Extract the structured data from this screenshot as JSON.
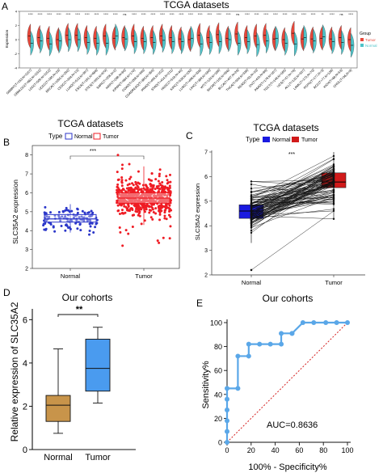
{
  "panel_letters": [
    "A",
    "B",
    "C",
    "D",
    "E"
  ],
  "chart_data": [
    {
      "panel": "A",
      "type": "violin",
      "title": "TCGA datasets",
      "ylabel": "Expression",
      "ylim": [
        -4,
        4
      ],
      "yticks": [
        "4",
        "2",
        "0",
        "-2",
        "-4"
      ],
      "legend_title": "Group",
      "legend_position": "right",
      "series": [
        {
          "name": "Tumor",
          "color": "#e8473a"
        },
        {
          "name": "Normal",
          "color": "#4ec3c9"
        }
      ],
      "categories": [
        "GBMNT(T=153,N=1157)",
        "GBMLGG(T=662,N=1152)",
        "LGG(T=509,N=1152)",
        "UCEC(T=180,N=23)",
        "BRCA(T=1092,N=292)",
        "CESC(T=304,N=13)",
        "LUAD(T=513,N=397)",
        "ESCA(T=181,N=668)",
        "STES(T=593,N=879)",
        "SARC(T=258,N=2)",
        "KIRP(T=288,N=60)",
        "KIPAN(T=884,N=170)",
        "COAD(T=288,N=349)",
        "COADREAD(T=380,N=359)",
        "PRAD(T=495,N=152)",
        "STAD(T=414,N=211)",
        "HNSC(T=518,N=44)",
        "KIRC(T=530,N=100)",
        "LUSC(T=498,N=338)",
        "LIHC(T=369,N=160)",
        "WT(T=120,N=168)",
        "SKCM(T=102,N=556)",
        "BLCA(T=407,N=28)",
        "THCA(T=504,N=338)",
        "READ(T=92,N=10)",
        "OV(T=419,N=88)",
        "PAAD(T=178,N=167)",
        "TGCT(T=148,N=165)",
        "UCS(T=57,N=78)",
        "ALL(T=132,N=337)",
        "LAML(T=173,N=70)",
        "PCPG(T=177,N=3)",
        "ACC(T=77,N=128)",
        "KICH(T=66,N=53)",
        "CHOL(T=36,N=9)"
      ],
      "significance": [
        "****",
        "****",
        "****",
        "****",
        "****",
        "****",
        "****",
        "****",
        "****",
        "****",
        "ns",
        "****",
        "****",
        "****",
        "****",
        "****",
        "****",
        "****",
        "****",
        "****",
        "****",
        "****",
        "ns",
        "****",
        "****",
        "****",
        "****",
        "****",
        "****",
        "****",
        "****",
        "**",
        "****",
        "ns",
        "****"
      ],
      "tumor_median": [
        0.5,
        0.3,
        0.2,
        0.0,
        0.6,
        0.6,
        0.3,
        0.2,
        0.5,
        0.2,
        0.3,
        0.5,
        0.2,
        0.3,
        0.5,
        0.3,
        0.1,
        0.0,
        0.6,
        0.3,
        0.7,
        0.2,
        0.8,
        0.3,
        0.5,
        0.6,
        0.1,
        0.0,
        0.9,
        0.1,
        0.1,
        0.2,
        0.1,
        0.3,
        0.0
      ],
      "normal_median": [
        -0.5,
        -0.2,
        -0.6,
        -0.2,
        0.0,
        0.0,
        -0.4,
        -0.5,
        -0.5,
        0.5,
        0.1,
        -0.3,
        -0.3,
        -0.4,
        -0.1,
        -0.3,
        -0.3,
        0.2,
        -0.6,
        -0.4,
        -0.3,
        0.0,
        -0.5,
        -0.3,
        -0.7,
        -0.2,
        0.2,
        -0.5,
        -0.6,
        0.3,
        -0.2,
        0.4,
        -0.3,
        -0.4,
        -0.8
      ]
    },
    {
      "panel": "B",
      "type": "box",
      "title": "TCGA datasets",
      "legend_title": "Type",
      "ylabel": "SLC35A2 expression",
      "ylim": [
        2,
        8.5
      ],
      "yticks": [
        2,
        3,
        4,
        5,
        6,
        7,
        8
      ],
      "categories": [
        "Normal",
        "Tumor"
      ],
      "significance": "***",
      "series": [
        {
          "name": "Normal",
          "color": "#2b36c9",
          "n": 120,
          "box": {
            "q1": 4.45,
            "median": 4.62,
            "q3": 4.85,
            "whisker_low": 3.9,
            "whisker_high": 5.4
          }
        },
        {
          "name": "Tumor",
          "color": "#ef1c24",
          "n": 600,
          "box": {
            "q1": 5.45,
            "median": 5.72,
            "q3": 6.0,
            "whisker_low": 4.3,
            "whisker_high": 7.4
          }
        }
      ]
    },
    {
      "panel": "C",
      "type": "paired-box",
      "title": "TCGA datasets",
      "legend_title": "Type",
      "ylabel": "SLC35A2 expression",
      "ylim": [
        2,
        7
      ],
      "yticks": [
        2,
        3,
        4,
        5,
        6,
        7
      ],
      "categories": [
        "Normal",
        "Tumor"
      ],
      "significance": "***",
      "series": [
        {
          "name": "Normal",
          "color": "#1a1ae0",
          "box": {
            "q1": 4.3,
            "median": 4.6,
            "q3": 4.85,
            "whisker_low": 3.3,
            "whisker_high": 5.7
          }
        },
        {
          "name": "Tumor",
          "color": "#d11a1a",
          "box": {
            "q1": 5.55,
            "median": 5.78,
            "q3": 6.15,
            "whisker_low": 4.3,
            "whisker_high": 7.0
          }
        }
      ],
      "pairs_n": 90
    },
    {
      "panel": "D",
      "type": "box",
      "title": "Our cohorts",
      "ylabel": "Relative expression of SLC35A2",
      "ylim": [
        0,
        6.5
      ],
      "yticks": [
        0,
        2,
        4,
        6
      ],
      "categories": [
        "Normal",
        "Tumor"
      ],
      "significance": "**",
      "series": [
        {
          "name": "Normal",
          "color": "#c8944a",
          "box": {
            "q1": 1.3,
            "median": 2.05,
            "q3": 2.5,
            "whisker_low": 0.75,
            "whisker_high": 4.65
          }
        },
        {
          "name": "Tumor",
          "color": "#4a9bef",
          "box": {
            "q1": 2.7,
            "median": 3.75,
            "q3": 5.1,
            "whisker_low": 2.15,
            "whisker_high": 5.65
          }
        }
      ]
    },
    {
      "panel": "E",
      "type": "roc",
      "title": "Our cohorts",
      "xlabel": "100% - Specificity%",
      "ylabel": "Sensitivity%",
      "xlim": [
        0,
        100
      ],
      "ylim": [
        0,
        100
      ],
      "xticks": [
        0,
        20,
        40,
        60,
        80,
        100
      ],
      "yticks": [
        0,
        20,
        40,
        60,
        80,
        100
      ],
      "annotation": "AUC=0.8636",
      "color": "#5aa7e8",
      "x": [
        0,
        0,
        0,
        0,
        0,
        0,
        9,
        9,
        18,
        18,
        27,
        36,
        45,
        45,
        54,
        54,
        63,
        72,
        82,
        91,
        100
      ],
      "y": [
        0,
        9,
        18,
        27,
        36,
        45,
        45,
        72,
        72,
        82,
        82,
        82,
        82,
        91,
        91,
        91,
        100,
        100,
        100,
        100,
        100
      ]
    }
  ]
}
